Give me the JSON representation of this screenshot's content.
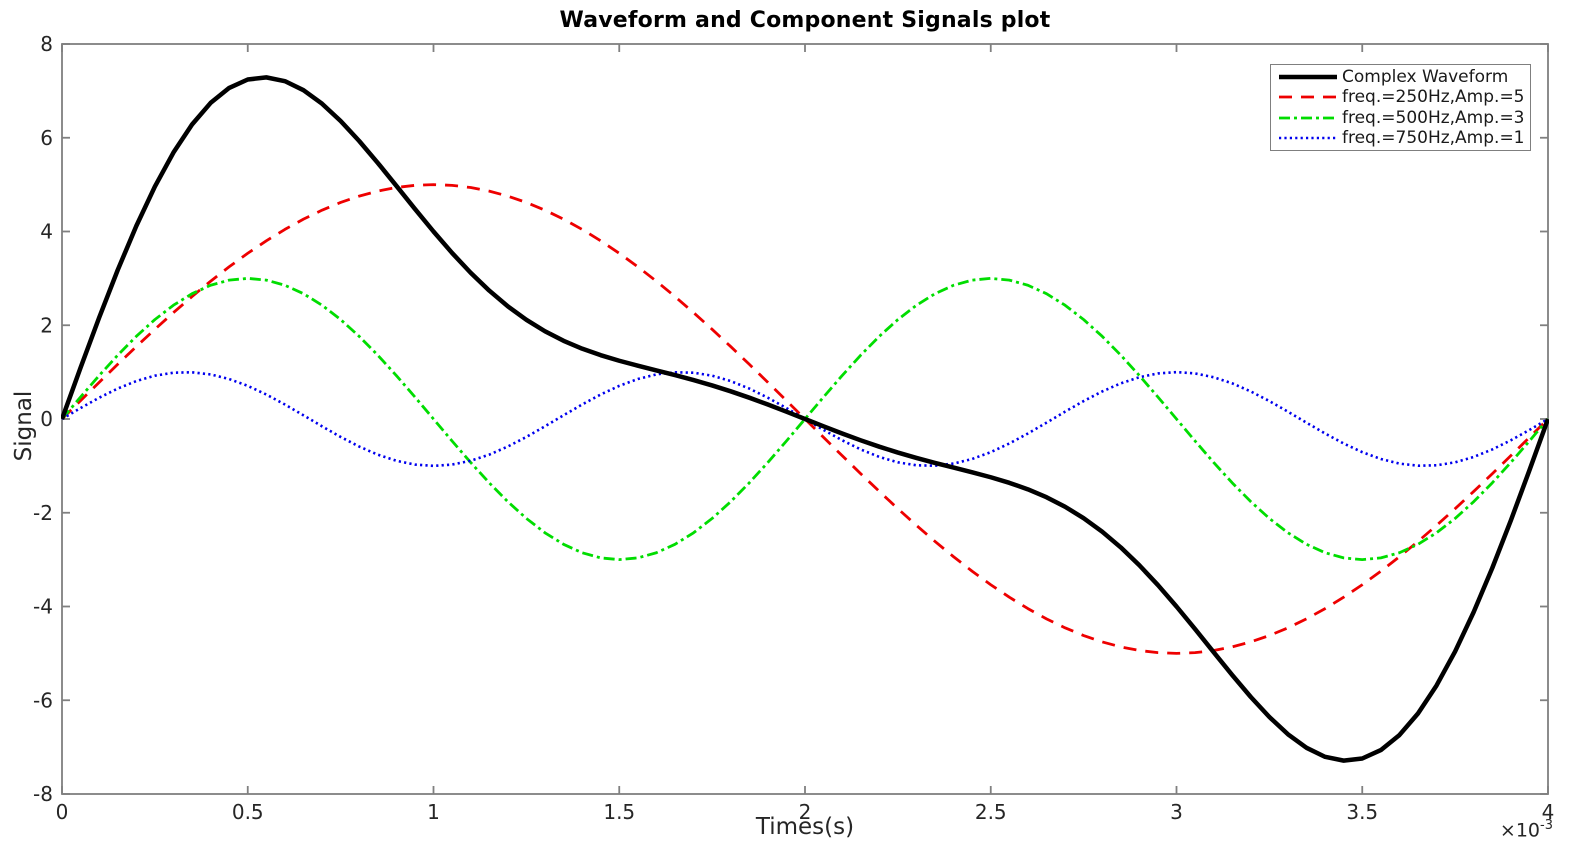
{
  "page": {
    "background": "#ffffff"
  },
  "chart_data": {
    "type": "line",
    "title": "Waveform and Component Signals plot",
    "xlabel": "Times(s)",
    "ylabel": "Signal",
    "x_multiplier": {
      "base": "×10",
      "exponent": "-3"
    },
    "xlim": [
      0,
      4
    ],
    "ylim": [
      -8,
      8
    ],
    "x_ticks": [
      0,
      0.5,
      1,
      1.5,
      2,
      2.5,
      3,
      3.5,
      4
    ],
    "x_tick_labels": [
      "0",
      "0.5",
      "1",
      "1.5",
      "2",
      "2.5",
      "3",
      "3.5",
      "4"
    ],
    "y_ticks": [
      -8,
      -6,
      -4,
      -2,
      0,
      2,
      4,
      6,
      8
    ],
    "y_tick_labels": [
      "-8",
      "-6",
      "-4",
      "-2",
      "0",
      "2",
      "4",
      "6",
      "8"
    ],
    "grid": false,
    "legend_position": "top-right",
    "axis_color": "#808080",
    "tick_label_color": "#262626",
    "sample_step_ms": 0.05,
    "x_sample_ms": [
      0,
      0.25,
      0.5,
      0.75,
      1,
      1.25,
      1.5,
      1.75,
      2,
      2.25,
      2.5,
      2.75,
      3,
      3.25,
      3.5,
      3.75,
      4
    ],
    "series": [
      {
        "name": "Complex Waveform",
        "role": "sum",
        "color": "#000000",
        "line_style": "solid",
        "line_width": 4.5,
        "y_samples": [
          0,
          4.958,
          7.243,
          6.358,
          4,
          2.115,
          1.243,
          0.716,
          0,
          -0.716,
          -1.243,
          -2.115,
          -4,
          -6.358,
          -7.243,
          -4.958,
          0
        ]
      },
      {
        "name": "freq.=250Hz,Amp.=5",
        "freq_hz": 250,
        "amplitude": 5,
        "color": "#ee0000",
        "line_style": "dashed",
        "line_width": 2.8,
        "y_samples": [
          0,
          1.913,
          3.536,
          4.619,
          5,
          4.619,
          3.536,
          1.913,
          0,
          -1.913,
          -3.536,
          -4.619,
          -5,
          -4.619,
          -3.536,
          -1.913,
          0
        ]
      },
      {
        "name": "freq.=500Hz,Amp.=3",
        "freq_hz": 500,
        "amplitude": 3,
        "color": "#00dd00",
        "line_style": "dashdot",
        "line_width": 2.8,
        "y_samples": [
          0,
          2.121,
          3,
          2.121,
          0,
          -2.121,
          -3,
          -2.121,
          0,
          2.121,
          3,
          2.121,
          0,
          -2.121,
          -3,
          -2.121,
          0
        ]
      },
      {
        "name": "freq.=750Hz,Amp.=1",
        "freq_hz": 750,
        "amplitude": 1,
        "color": "#0000ee",
        "line_style": "dotted",
        "line_width": 2.6,
        "y_samples": [
          0,
          0.924,
          0.707,
          -0.383,
          -1,
          -0.383,
          0.707,
          0.924,
          0,
          -0.924,
          -0.707,
          0.383,
          1,
          0.383,
          -0.707,
          -0.924,
          0
        ]
      }
    ]
  }
}
